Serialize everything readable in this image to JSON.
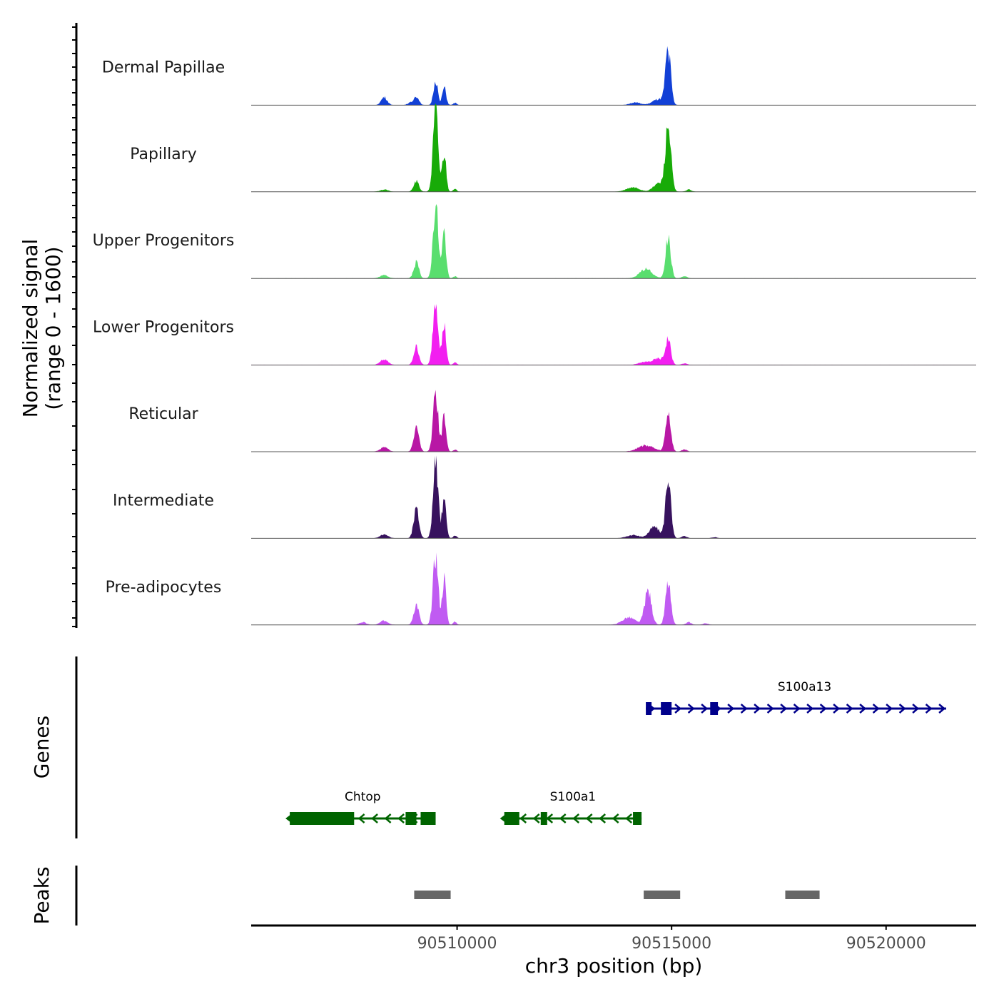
{
  "chart_data": {
    "type": "area",
    "title": "",
    "chromosome": "chr3",
    "xlabel": "chr3 position (bp)",
    "ylabel_line1": "Normalized signal",
    "ylabel_line2": "(range 0 - 1600)",
    "xlim": [
      90505200,
      90522100
    ],
    "ylim": [
      0,
      1600
    ],
    "x_ticks": [
      90510000,
      90515000,
      90520000
    ],
    "x_tick_labels": [
      "90510000",
      "90515000",
      "90520000"
    ],
    "series": [
      {
        "name": "Dermal Papillae",
        "color": "#1240d6",
        "peaks": [
          [
            90508300,
            150,
            70
          ],
          [
            90508900,
            40,
            60
          ],
          [
            90509050,
            170,
            60
          ],
          [
            90509500,
            480,
            50
          ],
          [
            90509700,
            330,
            45
          ],
          [
            90509950,
            40,
            40
          ],
          [
            90514150,
            50,
            120
          ],
          [
            90514700,
            110,
            140
          ],
          [
            90514920,
            1030,
            60
          ]
        ]
      },
      {
        "name": "Papillary",
        "color": "#18ab08",
        "peaks": [
          [
            90508300,
            40,
            90
          ],
          [
            90509050,
            200,
            60
          ],
          [
            90509500,
            1550,
            60
          ],
          [
            90509700,
            760,
            45
          ],
          [
            90509950,
            50,
            40
          ],
          [
            90514100,
            80,
            150
          ],
          [
            90514700,
            160,
            120
          ],
          [
            90514920,
            1250,
            65
          ],
          [
            90515400,
            40,
            60
          ]
        ]
      },
      {
        "name": "Upper Progenitors",
        "color": "#59de6e",
        "peaks": [
          [
            90508300,
            60,
            90
          ],
          [
            90509050,
            300,
            60
          ],
          [
            90509500,
            1450,
            60
          ],
          [
            90509700,
            900,
            45
          ],
          [
            90509950,
            40,
            40
          ],
          [
            90514400,
            180,
            140
          ],
          [
            90514920,
            780,
            60
          ],
          [
            90515300,
            40,
            60
          ]
        ]
      },
      {
        "name": "Lower Progenitors",
        "color": "#f21ff0",
        "peaks": [
          [
            90508300,
            110,
            90
          ],
          [
            90509050,
            350,
            60
          ],
          [
            90509500,
            1300,
            60
          ],
          [
            90509700,
            780,
            45
          ],
          [
            90509950,
            50,
            40
          ],
          [
            90514350,
            50,
            130
          ],
          [
            90514700,
            120,
            140
          ],
          [
            90514920,
            480,
            60
          ],
          [
            90515300,
            30,
            60
          ]
        ]
      },
      {
        "name": "Reticular",
        "color": "#b817a5",
        "peaks": [
          [
            90508300,
            80,
            90
          ],
          [
            90509050,
            460,
            60
          ],
          [
            90509500,
            1100,
            60
          ],
          [
            90509700,
            680,
            45
          ],
          [
            90509950,
            40,
            40
          ],
          [
            90514400,
            120,
            180
          ],
          [
            90514920,
            750,
            60
          ],
          [
            90515300,
            40,
            60
          ]
        ]
      },
      {
        "name": "Intermediate",
        "color": "#37125e",
        "peaks": [
          [
            90508300,
            70,
            90
          ],
          [
            90509050,
            570,
            60
          ],
          [
            90509500,
            1430,
            60
          ],
          [
            90509700,
            820,
            45
          ],
          [
            90509950,
            50,
            40
          ],
          [
            90514100,
            60,
            140
          ],
          [
            90514600,
            220,
            120
          ],
          [
            90514920,
            1200,
            60
          ],
          [
            90515300,
            40,
            60
          ],
          [
            90516000,
            20,
            60
          ]
        ]
      },
      {
        "name": "Pre-adipocytes",
        "color": "#c05bf2",
        "peaks": [
          [
            90507800,
            50,
            80
          ],
          [
            90508300,
            80,
            90
          ],
          [
            90509050,
            400,
            60
          ],
          [
            90509500,
            1350,
            60
          ],
          [
            90509700,
            900,
            45
          ],
          [
            90509950,
            60,
            40
          ],
          [
            90514000,
            140,
            150
          ],
          [
            90514450,
            650,
            80
          ],
          [
            90514920,
            800,
            60
          ],
          [
            90515400,
            50,
            60
          ],
          [
            90515800,
            30,
            60
          ]
        ]
      }
    ],
    "genes": [
      {
        "name": "S100a13",
        "start": 90514400,
        "end": 90521400,
        "strand": "+",
        "color": "#00008b",
        "exons": [
          [
            90514400,
            90514450
          ],
          [
            90514750,
            90515000
          ],
          [
            90515900,
            90516080
          ]
        ],
        "thick": [
          90514800,
          90515980
        ]
      },
      {
        "name": "Chtop",
        "start": 90506100,
        "end": 90509500,
        "strand": "-",
        "color": "#006400",
        "exons": [
          [
            90506100,
            90507600
          ],
          [
            90508800,
            90509050
          ],
          [
            90509150,
            90509500
          ]
        ],
        "thick": [
          90506200,
          90509400
        ]
      },
      {
        "name": "S100a1",
        "start": 90511100,
        "end": 90514300,
        "strand": "-",
        "color": "#006400",
        "exons": [
          [
            90511100,
            90511450
          ],
          [
            90511950,
            90512100
          ],
          [
            90514100,
            90514300
          ]
        ],
        "thick": [
          90511150,
          90514250
        ]
      }
    ],
    "peak_regions": [
      [
        90509000,
        90509850
      ],
      [
        90514350,
        90515200
      ],
      [
        90517650,
        90518450
      ]
    ],
    "peak_color": "#666666",
    "genes_track_label": "Genes",
    "peaks_track_label": "Peaks"
  }
}
